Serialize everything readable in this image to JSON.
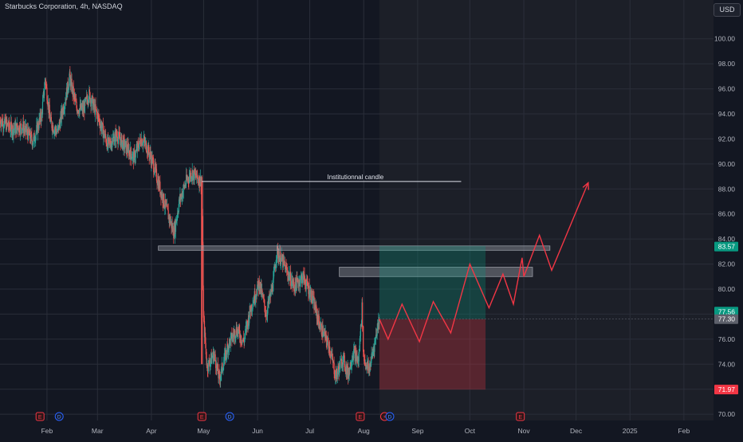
{
  "header": {
    "symbol_title": "Starbucks Corporation, 4h, NASDAQ",
    "currency": "USD"
  },
  "colors": {
    "background": "#131722",
    "forecast_background": "#1c1f28",
    "grid": "#2a2e39",
    "candle_up": "#26a69a",
    "candle_down": "#ef5350",
    "text": "#b2b5be",
    "forecast_line": "#f23645",
    "target_zone": "rgba(8,153,129,0.28)",
    "stop_zone": "rgba(242,54,69,0.28)",
    "zone_box": "rgba(178,181,190,0.35)",
    "label_green": "#089981",
    "label_red": "#f23645",
    "label_gray": "#5d606b"
  },
  "chart_data": {
    "type": "candlestick",
    "title": "Starbucks Corporation, 4h, NASDAQ",
    "y_axis": {
      "ticks": [
        70,
        72,
        74,
        76,
        78,
        80,
        82,
        84,
        86,
        88,
        90,
        92,
        94,
        96,
        98,
        100
      ],
      "tick_labels": [
        "70.00",
        "72.00",
        "74.00",
        "76.00",
        "78.00",
        "80.00",
        "82.00",
        "84.00",
        "86.00",
        "88.00",
        "90.00",
        "92.00",
        "94.00",
        "96.00",
        "98.00",
        "100.00"
      ],
      "range": [
        69.5,
        101.7
      ],
      "side": "right"
    },
    "x_axis": {
      "range": [
        "2024-01-05",
        "2025-02-18"
      ],
      "ticks": [
        {
          "date": "2024-02-01",
          "label": "Feb"
        },
        {
          "date": "2024-03-01",
          "label": "Mar"
        },
        {
          "date": "2024-04-01",
          "label": "Apr"
        },
        {
          "date": "2024-05-01",
          "label": "May"
        },
        {
          "date": "2024-06-01",
          "label": "Jun"
        },
        {
          "date": "2024-07-01",
          "label": "Jul"
        },
        {
          "date": "2024-08-01",
          "label": "Aug"
        },
        {
          "date": "2024-09-01",
          "label": "Sep"
        },
        {
          "date": "2024-10-01",
          "label": "Oct"
        },
        {
          "date": "2024-11-01",
          "label": "Nov"
        },
        {
          "date": "2024-12-01",
          "label": "Dec"
        },
        {
          "date": "2025-01-01",
          "label": "2025"
        },
        {
          "date": "2025-02-01",
          "label": "Feb"
        }
      ]
    },
    "price_path": [
      [
        "2024-01-05",
        93.5
      ],
      [
        "2024-01-12",
        92.8
      ],
      [
        "2024-01-18",
        93.0
      ],
      [
        "2024-01-24",
        91.8
      ],
      [
        "2024-01-29",
        94.0
      ],
      [
        "2024-01-31",
        96.8
      ],
      [
        "2024-02-03",
        93.3
      ],
      [
        "2024-02-07",
        92.5
      ],
      [
        "2024-02-12",
        95.5
      ],
      [
        "2024-02-14",
        96.9
      ],
      [
        "2024-02-18",
        94.5
      ],
      [
        "2024-02-22",
        94.3
      ],
      [
        "2024-02-25",
        95.6
      ],
      [
        "2024-03-02",
        93.5
      ],
      [
        "2024-03-07",
        91.5
      ],
      [
        "2024-03-12",
        92.3
      ],
      [
        "2024-03-17",
        91.4
      ],
      [
        "2024-03-22",
        90.5
      ],
      [
        "2024-03-26",
        92.0
      ],
      [
        "2024-03-29",
        91.5
      ],
      [
        "2024-04-02",
        90.0
      ],
      [
        "2024-04-06",
        88.0
      ],
      [
        "2024-04-10",
        86.2
      ],
      [
        "2024-04-14",
        84.5
      ],
      [
        "2024-04-17",
        87.0
      ],
      [
        "2024-04-21",
        88.6
      ],
      [
        "2024-04-24",
        89.3
      ],
      [
        "2024-04-28",
        88.8
      ],
      [
        "2024-04-30",
        88.6
      ],
      [
        "2024-05-01",
        77.5
      ],
      [
        "2024-05-03",
        73.8
      ],
      [
        "2024-05-07",
        74.8
      ],
      [
        "2024-05-10",
        72.8
      ],
      [
        "2024-05-15",
        75.5
      ],
      [
        "2024-05-20",
        76.8
      ],
      [
        "2024-05-24",
        75.8
      ],
      [
        "2024-05-28",
        78.5
      ],
      [
        "2024-06-02",
        80.5
      ],
      [
        "2024-06-06",
        78.0
      ],
      [
        "2024-06-10",
        80.5
      ],
      [
        "2024-06-12",
        83.0
      ],
      [
        "2024-06-16",
        82.0
      ],
      [
        "2024-06-22",
        80.2
      ],
      [
        "2024-06-27",
        81.0
      ],
      [
        "2024-07-02",
        79.5
      ],
      [
        "2024-07-07",
        77.0
      ],
      [
        "2024-07-12",
        75.5
      ],
      [
        "2024-07-16",
        73.0
      ],
      [
        "2024-07-20",
        74.5
      ],
      [
        "2024-07-23",
        73.2
      ],
      [
        "2024-07-26",
        75.0
      ],
      [
        "2024-07-29",
        74.2
      ],
      [
        "2024-07-31",
        78.5
      ],
      [
        "2024-08-01",
        74.5
      ],
      [
        "2024-08-04",
        73.5
      ],
      [
        "2024-08-07",
        75.5
      ],
      [
        "2024-08-10",
        77.8
      ]
    ],
    "forecast_path": [
      [
        "2024-08-10",
        77.6
      ],
      [
        "2024-08-15",
        76.0
      ],
      [
        "2024-08-23",
        78.8
      ],
      [
        "2024-09-02",
        75.8
      ],
      [
        "2024-09-10",
        79.0
      ],
      [
        "2024-09-20",
        76.5
      ],
      [
        "2024-10-01",
        82.0
      ],
      [
        "2024-10-12",
        78.5
      ],
      [
        "2024-10-20",
        81.2
      ],
      [
        "2024-10-26",
        78.8
      ],
      [
        "2024-10-31",
        82.5
      ],
      [
        "2024-11-01",
        81.0
      ],
      [
        "2024-11-10",
        84.3
      ],
      [
        "2024-11-17",
        81.5
      ],
      [
        "2024-12-08",
        88.5
      ]
    ],
    "annotations": [
      {
        "type": "hline",
        "label": "Institutionnal candle",
        "y": 88.6,
        "x_start": "2024-04-30",
        "x_end": "2024-09-26"
      },
      {
        "type": "box",
        "y_top": 83.45,
        "y_bottom": 83.1,
        "x_start": "2024-04-05",
        "x_end": "2024-11-16"
      },
      {
        "type": "box",
        "y_top": 81.75,
        "y_bottom": 81.0,
        "x_start": "2024-07-18",
        "x_end": "2024-11-06"
      },
      {
        "type": "position_target",
        "y_top": 83.45,
        "y_bottom": 77.6,
        "x_start": "2024-08-10",
        "x_end": "2024-10-10"
      },
      {
        "type": "position_stop",
        "y_top": 77.6,
        "y_bottom": 71.97,
        "x_start": "2024-08-10",
        "x_end": "2024-10-10"
      }
    ],
    "price_labels": [
      {
        "text": "83.57",
        "y": 83.4,
        "color": "green"
      },
      {
        "text": "77.56",
        "y": 78.2,
        "color": "green"
      },
      {
        "text": "77.30",
        "y": 77.6,
        "color": "gray"
      },
      {
        "text": "71.97",
        "y": 71.97,
        "color": "red"
      }
    ],
    "events": [
      {
        "text": "E",
        "date": "2024-01-28",
        "kind": "earnings"
      },
      {
        "text": "D",
        "date": "2024-02-08",
        "kind": "dividend"
      },
      {
        "text": "E",
        "date": "2024-04-30",
        "kind": "earnings"
      },
      {
        "text": "D",
        "date": "2024-05-16",
        "kind": "dividend"
      },
      {
        "text": "E",
        "date": "2024-07-30",
        "kind": "earnings"
      },
      {
        "text": "⚡",
        "date": "2024-08-13",
        "kind": "split"
      },
      {
        "text": "D",
        "date": "2024-08-16",
        "kind": "dividend"
      },
      {
        "text": "E",
        "date": "2024-10-30",
        "kind": "earnings"
      }
    ],
    "forecast_start": "2024-08-10"
  }
}
